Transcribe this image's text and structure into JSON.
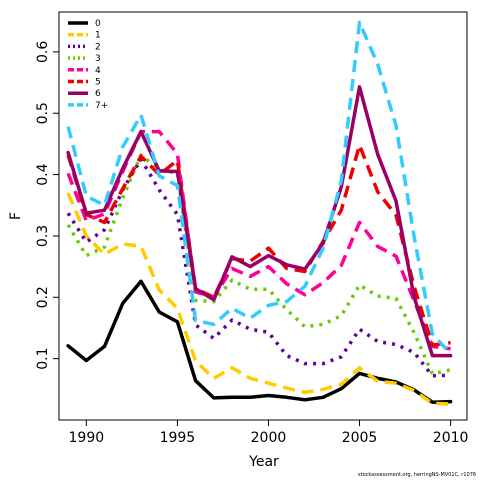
{
  "chart_data": {
    "type": "line",
    "xlabel": "Year",
    "ylabel": "F",
    "xlim": [
      1988.5,
      2010.9
    ],
    "ylim": [
      0.0,
      0.665
    ],
    "x_ticks": [
      1990,
      1995,
      2000,
      2005,
      2010
    ],
    "y_ticks": [
      0.1,
      0.2,
      0.3,
      0.4,
      0.5,
      0.6
    ],
    "legend_position": "top-left",
    "x": [
      1989,
      1990,
      1991,
      1992,
      1993,
      1994,
      1995,
      1996,
      1997,
      1998,
      1999,
      2000,
      2001,
      2002,
      2003,
      2004,
      2005,
      2006,
      2007,
      2008,
      2009,
      2010
    ],
    "series": [
      {
        "name": "0",
        "color": "#000000",
        "dash": "solid",
        "values": [
          0.121,
          0.097,
          0.12,
          0.19,
          0.226,
          0.176,
          0.16,
          0.064,
          0.036,
          0.037,
          0.037,
          0.04,
          0.037,
          0.033,
          0.037,
          0.051,
          0.076,
          0.068,
          0.062,
          0.049,
          0.029,
          0.03
        ]
      },
      {
        "name": "1",
        "color": "#FFCC00",
        "dash": "dashed",
        "values": [
          0.37,
          0.3,
          0.27,
          0.287,
          0.283,
          0.212,
          0.182,
          0.096,
          0.068,
          0.085,
          0.068,
          0.06,
          0.052,
          0.045,
          0.05,
          0.058,
          0.085,
          0.063,
          0.06,
          0.048,
          0.027,
          0.026
        ]
      },
      {
        "name": "2",
        "color": "#660099",
        "dash": "dotted",
        "values": [
          0.337,
          0.29,
          0.31,
          0.375,
          0.425,
          0.375,
          0.335,
          0.155,
          0.133,
          0.163,
          0.148,
          0.143,
          0.105,
          0.092,
          0.092,
          0.103,
          0.148,
          0.128,
          0.123,
          0.11,
          0.072,
          0.073
        ]
      },
      {
        "name": "3",
        "color": "#66CC00",
        "dash": "dotted",
        "values": [
          0.318,
          0.268,
          0.282,
          0.362,
          0.432,
          0.408,
          0.402,
          0.195,
          0.193,
          0.228,
          0.213,
          0.213,
          0.18,
          0.152,
          0.156,
          0.17,
          0.22,
          0.202,
          0.198,
          0.142,
          0.075,
          0.082
        ]
      },
      {
        "name": "4",
        "color": "#FF0099",
        "dash": "dashed",
        "values": [
          0.402,
          0.325,
          0.336,
          0.405,
          0.47,
          0.47,
          0.434,
          0.209,
          0.2,
          0.247,
          0.234,
          0.25,
          0.222,
          0.204,
          0.224,
          0.252,
          0.322,
          0.283,
          0.267,
          0.194,
          0.12,
          0.116
        ]
      },
      {
        "name": "5",
        "color": "#EE0000",
        "dash": "dashed",
        "values": [
          0.432,
          0.335,
          0.322,
          0.377,
          0.43,
          0.4,
          0.423,
          0.214,
          0.2,
          0.263,
          0.259,
          0.28,
          0.247,
          0.242,
          0.291,
          0.342,
          0.448,
          0.372,
          0.334,
          0.217,
          0.122,
          0.126
        ]
      },
      {
        "name": "6",
        "color": "#990066",
        "dash": "solid",
        "values": [
          0.436,
          0.337,
          0.342,
          0.41,
          0.47,
          0.406,
          0.405,
          0.214,
          0.196,
          0.266,
          0.25,
          0.268,
          0.253,
          0.246,
          0.288,
          0.38,
          0.543,
          0.433,
          0.357,
          0.2,
          0.105,
          0.105
        ]
      },
      {
        "name": "7+",
        "color": "#33CCFF",
        "dash": "dashed",
        "values": [
          0.478,
          0.365,
          0.35,
          0.445,
          0.497,
          0.398,
          0.382,
          0.162,
          0.156,
          0.182,
          0.166,
          0.187,
          0.193,
          0.218,
          0.28,
          0.39,
          0.648,
          0.58,
          0.48,
          0.298,
          0.14,
          0.108
        ]
      }
    ]
  },
  "footnote": "stockassessment.org, herringNS-MV01C, r1076"
}
